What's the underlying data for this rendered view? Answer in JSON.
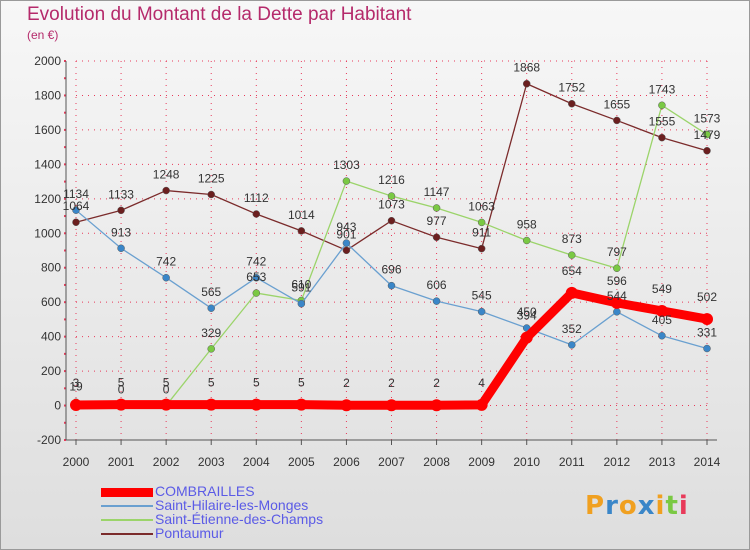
{
  "title": "Evolution du Montant de la Dette par Habitant",
  "subtitle": "(en €)",
  "logo": "Proxiti",
  "colors": {
    "title": "#b52a6b",
    "legend_text": "#5b5be6",
    "grid": "#e83a5a",
    "axis": "#555555"
  },
  "chart_data": {
    "type": "line",
    "title": "Evolution du Montant de la Dette par Habitant",
    "subtitle": "(en €)",
    "xlabel": "",
    "ylabel": "",
    "x": [
      "2000",
      "2001",
      "2002",
      "2003",
      "2004",
      "2005",
      "2006",
      "2007",
      "2008",
      "2009",
      "2010",
      "2011",
      "2012",
      "2013",
      "2014"
    ],
    "ylim": [
      -200,
      2000
    ],
    "yticks": [
      "-200",
      "0",
      "200",
      "400",
      "600",
      "800",
      "1000",
      "1200",
      "1400",
      "1600",
      "1800",
      "2000"
    ],
    "grid": true,
    "legend_position": "bottom-left",
    "series": [
      {
        "name": "COMBRAILLES",
        "color": "#ff0000",
        "marker": "#ff0000",
        "values": [
          3,
          5,
          5,
          5,
          5,
          5,
          2,
          2,
          2,
          4,
          394,
          654,
          596,
          549,
          502
        ],
        "labels": [
          "3",
          "5",
          "5",
          "5",
          "5",
          "5",
          "2",
          "2",
          "2",
          "4",
          "394",
          "654",
          "596",
          "549",
          "502"
        ]
      },
      {
        "name": "Saint-Hilaire-les-Monges",
        "color": "#6aa0d0",
        "marker": "#3a86c8",
        "values": [
          1134,
          913,
          742,
          565,
          742,
          591,
          943,
          696,
          606,
          545,
          450,
          352,
          544,
          405,
          331
        ],
        "labels": [
          "1134",
          "913",
          "742",
          "565",
          "742",
          "591",
          "943",
          "696",
          "606",
          "545",
          "450",
          "352",
          "544",
          "405",
          "331"
        ]
      },
      {
        "name": "Saint-Étienne-des-Champs",
        "color": "#9bd46a",
        "marker": "#7ac943",
        "values": [
          19,
          0,
          0,
          329,
          653,
          610,
          1303,
          1216,
          1147,
          1063,
          958,
          873,
          797,
          1743,
          1573
        ],
        "labels": [
          "19",
          "0",
          "0",
          "329",
          "653",
          "610",
          "1303",
          "1216",
          "1147",
          "1063",
          "958",
          "873",
          "797",
          "1743",
          "1573"
        ]
      },
      {
        "name": "Pontaumur",
        "color": "#7b2b2b",
        "marker": "#6b1f1f",
        "values": [
          1064,
          1133,
          1248,
          1225,
          1112,
          1014,
          901,
          1073,
          977,
          911,
          1868,
          1752,
          1655,
          1555,
          1479
        ],
        "labels": [
          "1064",
          "1133",
          "1248",
          "1225",
          "1112",
          "1014",
          "901",
          "1073",
          "977",
          "911",
          "1868",
          "1752",
          "1655",
          "1555",
          "1479"
        ]
      }
    ]
  }
}
